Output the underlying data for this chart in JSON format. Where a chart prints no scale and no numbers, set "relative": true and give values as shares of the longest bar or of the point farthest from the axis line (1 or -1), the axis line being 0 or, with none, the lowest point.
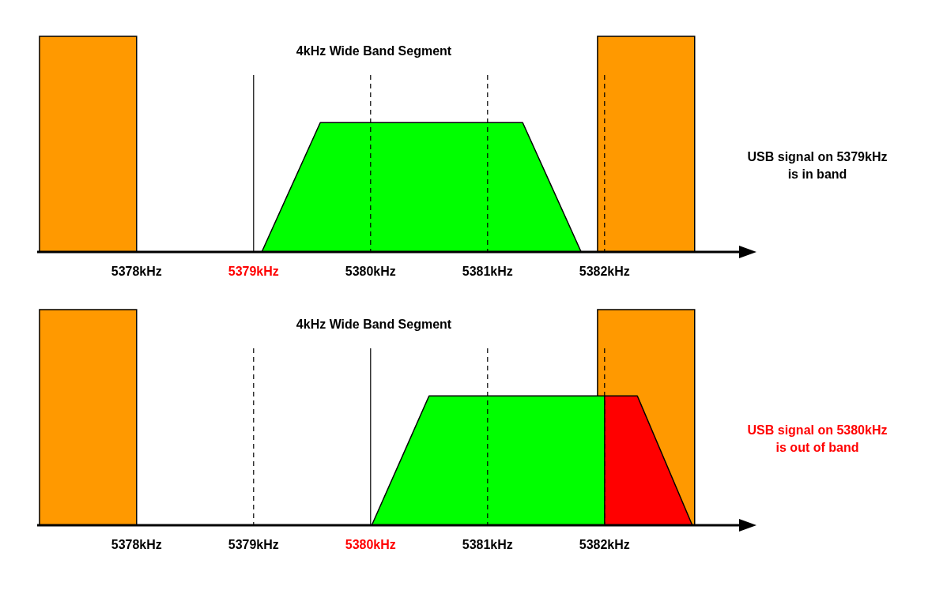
{
  "chart_data": [
    {
      "type": "area",
      "title": "4kHz Wide Band Segment",
      "relative": true,
      "xlim": [
        5377.15,
        5383.15
      ],
      "xticks": [
        {
          "value": 5378,
          "label": "5378kHz"
        },
        {
          "value": 5379,
          "label": "5379kHz"
        },
        {
          "value": 5380,
          "label": "5380kHz"
        },
        {
          "value": 5381,
          "label": "5381kHz"
        },
        {
          "value": 5382,
          "label": "5382kHz"
        }
      ],
      "series": [
        {
          "color": "#00ff00",
          "x": [
            5379.07,
            5379.57,
            5381.3,
            5381.8
          ],
          "values": [
            0,
            1,
            1,
            0
          ]
        }
      ],
      "bands": [
        {
          "axis": "x",
          "from": 5377.17,
          "to": 5378,
          "color": "#ff9900"
        },
        {
          "axis": "x",
          "from": 5381.94,
          "to": 5382.77,
          "color": "#ff9900"
        }
      ],
      "ref_lines": [
        {
          "axis": "x",
          "value": 5379,
          "line_style": "solid"
        },
        {
          "axis": "x",
          "value": 5380,
          "line_style": "dashed"
        },
        {
          "axis": "x",
          "value": 5381,
          "line_style": "dashed"
        },
        {
          "axis": "x",
          "value": 5382,
          "line_style": "dashed"
        }
      ],
      "annotations": [
        "USB signal on 5379kHz\nis in band"
      ]
    },
    {
      "type": "area",
      "title": "4kHz Wide Band Segment",
      "relative": true,
      "xlim": [
        5377.15,
        5383.15
      ],
      "xticks": [
        {
          "value": 5378,
          "label": "5378kHz"
        },
        {
          "value": 5379,
          "label": "5379kHz"
        },
        {
          "value": 5380,
          "label": "5380kHz"
        },
        {
          "value": 5381,
          "label": "5381kHz"
        },
        {
          "value": 5382,
          "label": "5382kHz"
        }
      ],
      "series": [
        {
          "color": "#00ff00",
          "x": [
            5380.01,
            5380.5,
            5382,
            5382
          ],
          "values": [
            0,
            1,
            1,
            0
          ]
        },
        {
          "color": "#ff0000",
          "x": [
            5382,
            5382,
            5382.28,
            5382.75
          ],
          "values": [
            0,
            1,
            1,
            0
          ]
        }
      ],
      "bands": [
        {
          "axis": "x",
          "from": 5377.17,
          "to": 5378,
          "color": "#ff9900"
        },
        {
          "axis": "x",
          "from": 5381.94,
          "to": 5382.77,
          "color": "#ff9900"
        }
      ],
      "ref_lines": [
        {
          "axis": "x",
          "value": 5379,
          "line_style": "dashed"
        },
        {
          "axis": "x",
          "value": 5380,
          "line_style": "solid"
        },
        {
          "axis": "x",
          "value": 5381,
          "line_style": "dashed"
        },
        {
          "axis": "x",
          "value": 5382,
          "line_style": "dashed"
        }
      ],
      "annotations": [
        "USB signal on 5380kHz\nis out of band"
      ]
    }
  ]
}
